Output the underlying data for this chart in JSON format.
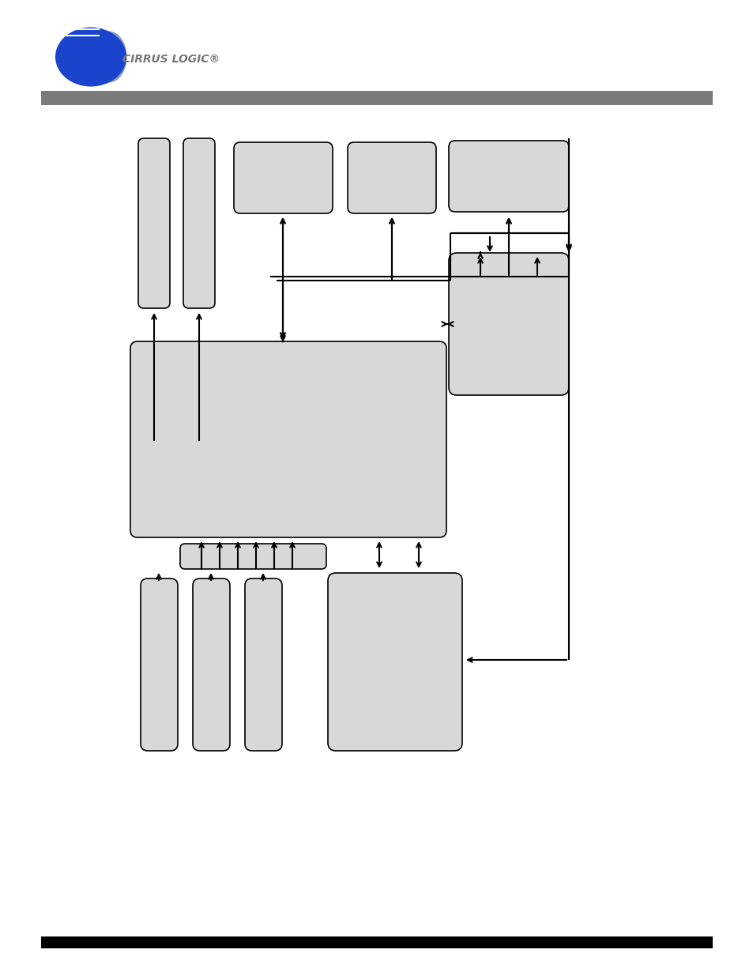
{
  "bg_color": "#ffffff",
  "box_color": "#d8d8d8",
  "box_edge": "#000000",
  "header_bar_color": "#808080",
  "figure_width": 9.54,
  "figure_height": 12.35,
  "dpi": 100
}
